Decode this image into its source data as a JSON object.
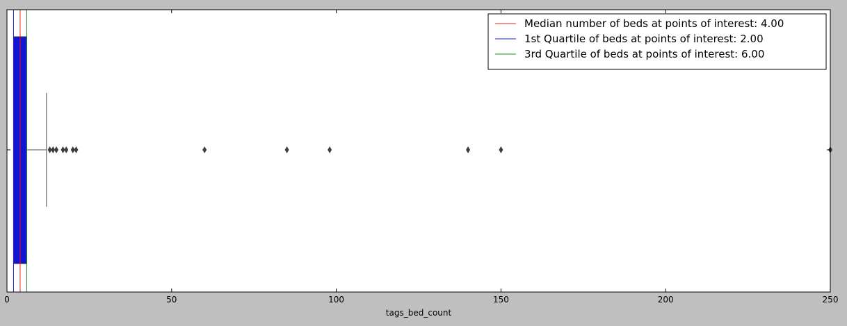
{
  "chart_data": {
    "type": "boxplot",
    "orientation": "horizontal",
    "xlabel": "tags_bed_count",
    "ylabel": "",
    "xlim": [
      0,
      250
    ],
    "xticks": [
      0,
      50,
      100,
      150,
      200,
      250
    ],
    "grid": false,
    "legend_position": "top-right",
    "box": {
      "q1": 2,
      "median": 4,
      "q3": 6,
      "whisker_low": 2,
      "whisker_high": 12,
      "color": "#1414d4"
    },
    "outliers": [
      13,
      14,
      15,
      17,
      18,
      20,
      21,
      60,
      85,
      98,
      140,
      150,
      250
    ],
    "reference_lines": [
      {
        "name": "Median number of beds at points of interest: 4.00",
        "x": 4,
        "color": "#e01b1b"
      },
      {
        "name": "1st Quartile of beds at points of interest: 2.00",
        "x": 2,
        "color": "#1b1be0"
      },
      {
        "name": "3rd Quartile of beds at points of interest: 6.00",
        "x": 6,
        "color": "#1c8a1c"
      }
    ]
  },
  "colors": {
    "background": "#bfbfbf",
    "plot_area": "#ffffff",
    "axis": "#000000",
    "outlier_marker": "#3f3f3f",
    "whisker": "#4d4d4d"
  }
}
